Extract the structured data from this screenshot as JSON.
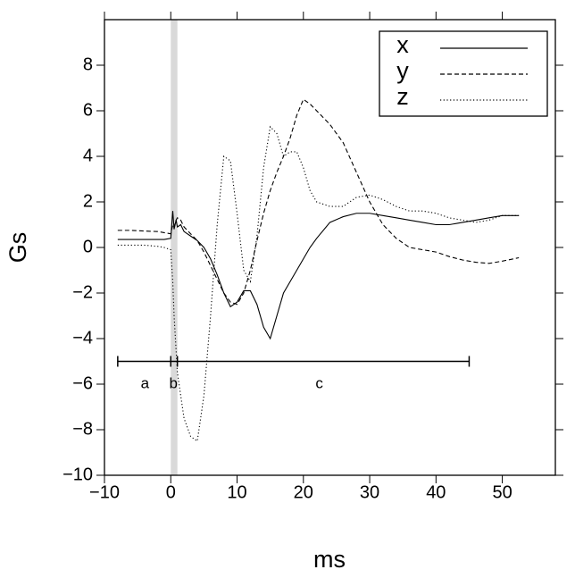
{
  "chart_data": {
    "type": "line",
    "xlabel": "ms",
    "ylabel": "Gs",
    "xlim": [
      -10,
      58
    ],
    "ylim": [
      -10,
      10
    ],
    "xticks": [
      {
        "value": -10,
        "label": "−10"
      },
      0,
      10,
      20,
      30,
      40,
      50
    ],
    "yticks": [
      {
        "value": -10,
        "label": "−10"
      },
      {
        "value": -8,
        "label": "−8"
      },
      {
        "value": -6,
        "label": "−6"
      },
      {
        "value": -4,
        "label": "−4"
      },
      {
        "value": -2,
        "label": "−2"
      },
      0,
      2,
      4,
      6,
      8
    ],
    "legend": "top-right",
    "shade": [
      0,
      1
    ],
    "shade_color": "#d9d9d9",
    "bracket": {
      "y": -5,
      "x": [
        -8,
        0,
        1,
        45
      ]
    },
    "annotations": [
      {
        "text": "a",
        "x": -3.9,
        "y": -6
      },
      {
        "text": "b",
        "x": 0.4,
        "y": -6
      },
      {
        "text": "c",
        "x": 22.4,
        "y": -6
      }
    ],
    "x": [
      -8,
      -6,
      -4,
      -2,
      -1,
      0,
      0.3,
      0.5,
      0.8,
      1,
      1.5,
      2,
      3,
      4,
      5,
      6,
      7,
      8,
      9,
      10,
      11,
      12,
      13,
      14,
      15,
      16,
      17,
      18,
      19,
      20,
      21,
      22,
      24,
      26,
      28,
      30,
      32,
      34,
      36,
      38,
      40,
      42,
      44,
      46,
      48,
      50,
      52.5
    ],
    "series": [
      {
        "name": "x",
        "color": "#000000",
        "linestyle": "solid",
        "values": [
          0.35,
          0.35,
          0.35,
          0.35,
          0.35,
          0.4,
          1.6,
          0.8,
          1.2,
          0.9,
          1.0,
          0.7,
          0.5,
          0.3,
          0.0,
          -0.5,
          -1.2,
          -2.0,
          -2.6,
          -2.4,
          -1.9,
          -1.9,
          -2.5,
          -3.5,
          -4.0,
          -3.0,
          -2.0,
          -1.5,
          -1.0,
          -0.5,
          0.0,
          0.4,
          1.1,
          1.35,
          1.5,
          1.5,
          1.4,
          1.3,
          1.2,
          1.1,
          1.0,
          1.0,
          1.1,
          1.2,
          1.3,
          1.4,
          1.4
        ]
      },
      {
        "name": "y",
        "color": "#000000",
        "linestyle": "dashed",
        "values": [
          0.75,
          0.75,
          0.72,
          0.7,
          0.65,
          0.6,
          1.0,
          0.9,
          1.2,
          1.3,
          1.2,
          0.9,
          0.6,
          0.3,
          -0.2,
          -0.8,
          -1.4,
          -2.0,
          -2.4,
          -2.5,
          -2.0,
          -1.0,
          0.3,
          1.5,
          2.5,
          3.3,
          4.0,
          4.8,
          5.8,
          6.5,
          6.3,
          6.0,
          5.4,
          4.6,
          3.3,
          2.0,
          1.0,
          0.4,
          0.0,
          -0.1,
          -0.2,
          -0.4,
          -0.55,
          -0.65,
          -0.7,
          -0.6,
          -0.45
        ]
      },
      {
        "name": "z",
        "color": "#000000",
        "linestyle": "dotted",
        "values": [
          0.1,
          0.1,
          0.1,
          0.05,
          0.0,
          -0.1,
          -1.5,
          -3.0,
          -4.5,
          -5.5,
          -6.5,
          -7.5,
          -8.3,
          -8.5,
          -6.5,
          -3.0,
          1.0,
          4.0,
          3.8,
          1.5,
          -1.0,
          -1.5,
          0.5,
          3.5,
          5.3,
          5.0,
          4.0,
          4.2,
          4.2,
          3.5,
          2.5,
          2.0,
          1.8,
          1.8,
          2.2,
          2.3,
          2.1,
          1.8,
          1.6,
          1.6,
          1.5,
          1.3,
          1.2,
          1.1,
          1.2,
          1.4,
          1.4
        ]
      }
    ]
  }
}
